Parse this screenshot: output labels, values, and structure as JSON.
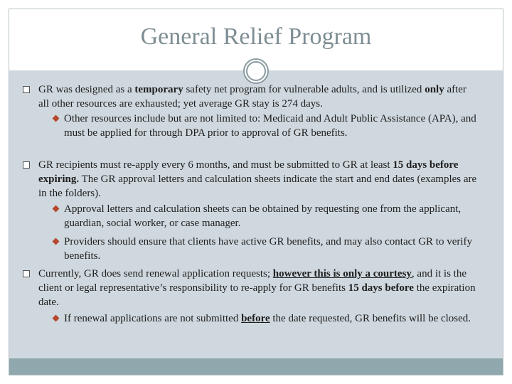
{
  "title": "General Relief Program",
  "bullets": [
    {
      "runs": [
        {
          "text": "GR was designed as a "
        },
        {
          "text": "temporary",
          "bold": true
        },
        {
          "text": " safety net program for vulnerable adults, and is utilized "
        },
        {
          "text": "only",
          "bold": true
        },
        {
          "text": " after all other resources are exhausted; yet average GR stay is 274 days."
        }
      ],
      "sub": [
        {
          "runs": [
            {
              "text": "Other resources include but are not limited to: Medicaid and Adult Public Assistance (APA), and must be applied for through DPA prior to approval of GR benefits."
            }
          ]
        }
      ]
    },
    {
      "runs": [
        {
          "text": "GR recipients must re-apply every 6 months, and must be submitted to GR at least "
        },
        {
          "text": "15 days before expiring.",
          "bold": true
        },
        {
          "text": " The GR approval letters and calculation sheets indicate the start and end dates (examples are in the folders)."
        }
      ],
      "sub": [
        {
          "runs": [
            {
              "text": "Approval letters and calculation sheets can be obtained by requesting one from the applicant, guardian, social worker, or case manager."
            }
          ]
        },
        {
          "runs": [
            {
              "text": "Providers should ensure that clients have active GR benefits, and may also contact GR to verify benefits."
            }
          ]
        }
      ]
    },
    {
      "runs": [
        {
          "text": "Currently, GR does send renewal application requests; "
        },
        {
          "text": "however this is only a courtesy",
          "bold": true,
          "underline": true
        },
        {
          "text": ", and it is the client or legal representative’s responsibility to re-apply for GR benefits "
        },
        {
          "text": "15 days before",
          "bold": true
        },
        {
          "text": " the expiration date."
        }
      ],
      "sub": [
        {
          "runs": [
            {
              "text": "If renewal applications are not submitted "
            },
            {
              "text": "before",
              "bold": true,
              "underline": true
            },
            {
              "text": " the date requested, GR benefits will be closed."
            }
          ]
        }
      ]
    }
  ]
}
